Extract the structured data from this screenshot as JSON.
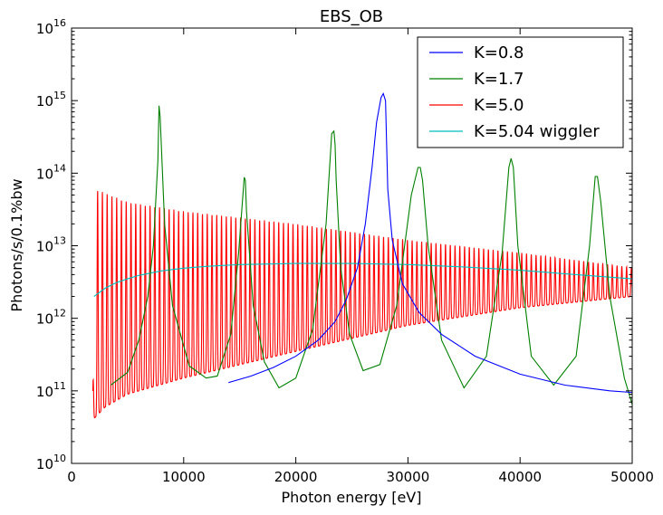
{
  "chart_data": {
    "type": "line",
    "title": "EBS_OB",
    "xlabel": "Photon energy [eV]",
    "ylabel": "Photons/s/0.1%bw",
    "xlim": [
      0,
      50000
    ],
    "ylim": [
      10000000000.0,
      1e+16
    ],
    "yscale": "log",
    "grid": false,
    "legend_position": "top-right",
    "x_ticks": [
      {
        "value": 0,
        "label": "0"
      },
      {
        "value": 10000,
        "label": "10000"
      },
      {
        "value": 20000,
        "label": "20000"
      },
      {
        "value": 30000,
        "label": "30000"
      },
      {
        "value": 40000,
        "label": "40000"
      },
      {
        "value": 50000,
        "label": "50000"
      }
    ],
    "y_ticks": [
      {
        "value": 10000000000.0,
        "base": "10",
        "exp": "10"
      },
      {
        "value": 100000000000.0,
        "base": "10",
        "exp": "11"
      },
      {
        "value": 1000000000000.0,
        "base": "10",
        "exp": "12"
      },
      {
        "value": 10000000000000.0,
        "base": "10",
        "exp": "13"
      },
      {
        "value": 100000000000000.0,
        "base": "10",
        "exp": "14"
      },
      {
        "value": 1000000000000000.0,
        "base": "10",
        "exp": "15"
      },
      {
        "value": 1e+16,
        "base": "10",
        "exp": "16"
      }
    ],
    "series": [
      {
        "name": "K=0.8",
        "color": "#0000ff",
        "x": [
          14000,
          16000,
          18000,
          20000,
          22000,
          23500,
          24500,
          25500,
          26200,
          26800,
          27200,
          27600,
          27800,
          28000,
          28200,
          28600,
          29500,
          31000,
          33000,
          36000,
          40000,
          44000,
          48000,
          50000
        ],
        "y": [
          130000000000.0,
          160000000000.0,
          210000000000.0,
          300000000000.0,
          500000000000.0,
          900000000000.0,
          1800000000000.0,
          5000000000000.0,
          20000000000000.0,
          120000000000000.0,
          500000000000000.0,
          1100000000000000.0,
          1250000000000000.0,
          1000000000000000.0,
          60000000000000.0,
          12000000000000.0,
          3000000000000.0,
          1200000000000.0,
          600000000000.0,
          300000000000.0,
          170000000000.0,
          120000000000.0,
          100000000000.0,
          95000000000.0
        ]
      },
      {
        "name": "K=1.7",
        "color": "#008000",
        "x": [
          3500,
          5000,
          6000,
          6800,
          7300,
          7700,
          7800,
          7900,
          8300,
          9000,
          10500,
          12000,
          13000,
          14200,
          14900,
          15400,
          15500,
          15600,
          16200,
          17200,
          18500,
          20000,
          21500,
          22700,
          23200,
          23400,
          23500,
          23600,
          24000,
          24800,
          26000,
          27500,
          29000,
          30300,
          30900,
          31100,
          31300,
          31800,
          33000,
          35000,
          37000,
          38400,
          39000,
          39200,
          39400,
          39800,
          41000,
          43000,
          45000,
          46200,
          46700,
          46900,
          47200,
          48000,
          49300,
          50000
        ],
        "y": [
          120000000000.0,
          180000000000.0,
          500000000000.0,
          2000000000000.0,
          10000000000000.0,
          150000000000000.0,
          850000000000000.0,
          600000000000000.0,
          20000000000000.0,
          1500000000000.0,
          220000000000.0,
          150000000000.0,
          160000000000.0,
          600000000000.0,
          8000000000000.0,
          88000000000000.0,
          80000000000000.0,
          30000000000000.0,
          1500000000000.0,
          250000000000.0,
          110000000000.0,
          150000000000.0,
          700000000000.0,
          20000000000000.0,
          350000000000000.0,
          380000000000000.0,
          250000000000000.0,
          80000000000000.0,
          5000000000000.0,
          600000000000.0,
          190000000000.0,
          230000000000.0,
          1500000000000.0,
          50000000000000.0,
          120000000000000.0,
          120000000000000.0,
          80000000000000.0,
          10000000000000.0,
          500000000000.0,
          110000000000.0,
          300000000000.0,
          8000000000000.0,
          120000000000000.0,
          160000000000000.0,
          120000000000000.0,
          10000000000000.0,
          300000000000.0,
          120000000000.0,
          300000000000.0,
          10000000000000.0,
          90000000000000.0,
          90000000000000.0,
          40000000000000.0,
          2000000000000.0,
          150000000000.0,
          65000000000.0
        ]
      },
      {
        "name": "K=5.0",
        "color": "#ff0000",
        "x_range": [
          1900,
          50000
        ],
        "period_ev": 425,
        "upper_envelope": [
          [
            1900,
            100000000000.0
          ],
          [
            2200,
            60000000000000.0
          ],
          [
            5000,
            40000000000000.0
          ],
          [
            10000,
            30000000000000.0
          ],
          [
            20000,
            20000000000000.0
          ],
          [
            30000,
            12000000000000.0
          ],
          [
            40000,
            8000000000000.0
          ],
          [
            50000,
            5000000000000.0
          ]
        ],
        "lower_envelope": [
          [
            1900,
            40000000000.0
          ],
          [
            3000,
            60000000000.0
          ],
          [
            5000,
            90000000000.0
          ],
          [
            10000,
            150000000000.0
          ],
          [
            20000,
            350000000000.0
          ],
          [
            30000,
            800000000000.0
          ],
          [
            40000,
            1400000000000.0
          ],
          [
            50000,
            2000000000000.0
          ]
        ]
      },
      {
        "name": "K=5.04 wiggler",
        "color": "#00bfbf",
        "x": [
          2000,
          3000,
          4000,
          5000,
          6000,
          8000,
          10000,
          12000,
          15000,
          20000,
          25000,
          30000,
          35000,
          40000,
          45000,
          50000
        ],
        "y": [
          2000000000000.0,
          2600000000000.0,
          3100000000000.0,
          3500000000000.0,
          3900000000000.0,
          4500000000000.0,
          4900000000000.0,
          5200000000000.0,
          5500000000000.0,
          5700000000000.0,
          5700000000000.0,
          5500000000000.0,
          5100000000000.0,
          4600000000000.0,
          4000000000000.0,
          3500000000000.0
        ]
      }
    ]
  }
}
